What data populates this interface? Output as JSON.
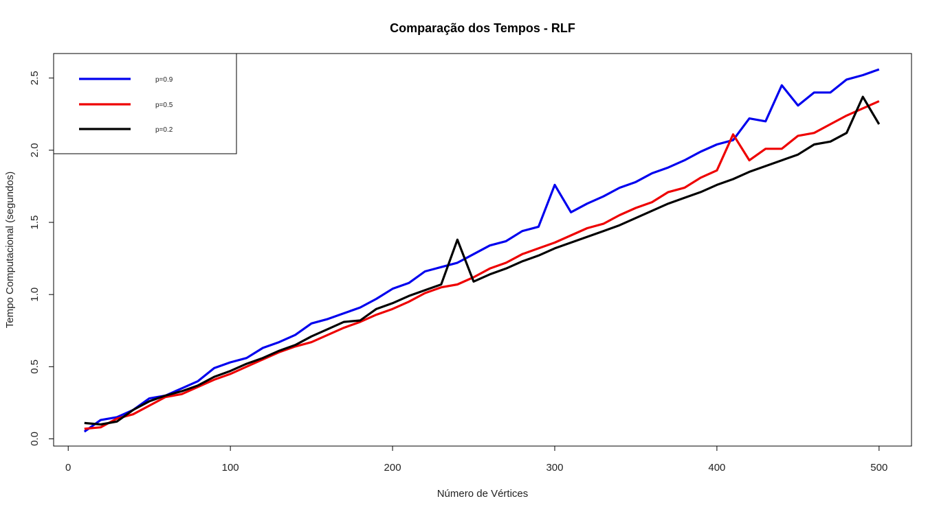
{
  "chart_data": {
    "type": "line",
    "title": "Comparação dos Tempos - RLF",
    "xlabel": "Número de Vértices",
    "ylabel": "Tempo Computacional (segundos)",
    "xlim": [
      -9,
      520
    ],
    "ylim": [
      -0.05,
      2.67
    ],
    "xticks": [
      0,
      100,
      200,
      300,
      400,
      500
    ],
    "yticks": [
      0.0,
      0.5,
      1.0,
      1.5,
      2.0,
      2.5
    ],
    "xtick_labels": [
      "0",
      "100",
      "200",
      "300",
      "400",
      "500"
    ],
    "ytick_labels": [
      "0.0",
      "0.5",
      "1.0",
      "1.5",
      "2.0",
      "2.5"
    ],
    "legend_position": "top-left",
    "grid": false,
    "x": [
      10,
      20,
      30,
      40,
      50,
      60,
      70,
      80,
      90,
      100,
      110,
      120,
      130,
      140,
      150,
      160,
      170,
      180,
      190,
      200,
      210,
      220,
      230,
      240,
      250,
      260,
      270,
      280,
      290,
      300,
      310,
      320,
      330,
      340,
      350,
      360,
      370,
      380,
      390,
      400,
      410,
      420,
      430,
      440,
      450,
      460,
      470,
      480,
      490,
      500
    ],
    "series": [
      {
        "name": "p=0.9",
        "color": "#0000ee",
        "values": [
          0.05,
          0.13,
          0.15,
          0.2,
          0.28,
          0.3,
          0.35,
          0.4,
          0.49,
          0.53,
          0.56,
          0.63,
          0.67,
          0.72,
          0.8,
          0.83,
          0.87,
          0.91,
          0.97,
          1.04,
          1.08,
          1.16,
          1.19,
          1.22,
          1.28,
          1.34,
          1.37,
          1.44,
          1.47,
          1.76,
          1.57,
          1.63,
          1.68,
          1.74,
          1.78,
          1.84,
          1.88,
          1.93,
          1.99,
          2.04,
          2.07,
          2.22,
          2.2,
          2.45,
          2.31,
          2.4,
          2.4,
          2.49,
          2.52,
          2.56
        ]
      },
      {
        "name": "p=0.5",
        "color": "#ee0000",
        "values": [
          0.07,
          0.08,
          0.14,
          0.17,
          0.23,
          0.29,
          0.31,
          0.36,
          0.41,
          0.45,
          0.5,
          0.55,
          0.6,
          0.64,
          0.67,
          0.72,
          0.77,
          0.81,
          0.86,
          0.9,
          0.95,
          1.01,
          1.05,
          1.07,
          1.12,
          1.18,
          1.22,
          1.28,
          1.32,
          1.36,
          1.41,
          1.46,
          1.49,
          1.55,
          1.6,
          1.64,
          1.71,
          1.74,
          1.81,
          1.86,
          2.11,
          1.93,
          2.01,
          2.01,
          2.1,
          2.12,
          2.18,
          2.24,
          2.29,
          2.34
        ]
      },
      {
        "name": "p=0.2",
        "color": "#000000",
        "values": [
          0.11,
          0.1,
          0.12,
          0.2,
          0.26,
          0.3,
          0.33,
          0.37,
          0.43,
          0.47,
          0.52,
          0.56,
          0.61,
          0.65,
          0.71,
          0.76,
          0.81,
          0.82,
          0.9,
          0.94,
          0.99,
          1.03,
          1.07,
          1.38,
          1.09,
          1.14,
          1.18,
          1.23,
          1.27,
          1.32,
          1.36,
          1.4,
          1.44,
          1.48,
          1.53,
          1.58,
          1.63,
          1.67,
          1.71,
          1.76,
          1.8,
          1.85,
          1.89,
          1.93,
          1.97,
          2.04,
          2.06,
          2.12,
          2.37,
          2.18
        ]
      }
    ]
  }
}
